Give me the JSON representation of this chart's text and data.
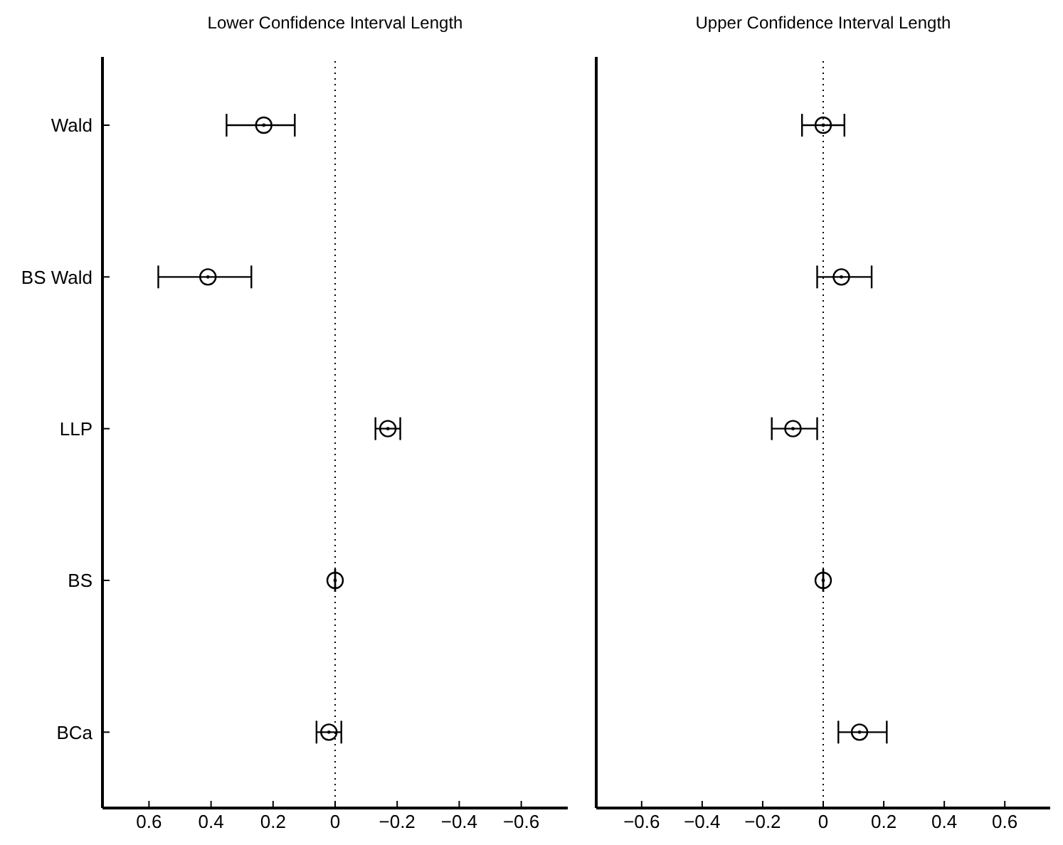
{
  "chart_data": [
    {
      "type": "scatter",
      "orientation": "horizontal",
      "title": "Lower Confidence Interval Length",
      "categories": [
        "Wald",
        "BS Wald",
        "LLP",
        "BS",
        "BCa"
      ],
      "values": [
        0.23,
        0.41,
        -0.17,
        0,
        0.02
      ],
      "errors": [
        [
          0.13,
          0.35
        ],
        [
          0.27,
          0.57
        ],
        [
          -0.21,
          -0.13
        ],
        null,
        [
          -0.02,
          0.06
        ]
      ],
      "color": "#000000",
      "marker": "circle",
      "xlim": [
        0.75,
        -0.75
      ],
      "xticks": [
        0.6,
        0.4,
        0.2,
        0,
        -0.2,
        -0.4,
        -0.6
      ],
      "ref_lines": [
        {
          "axis": "x",
          "value": 0,
          "line_style": "dotted",
          "color": "#000000"
        }
      ],
      "grid": false,
      "legend": false
    },
    {
      "type": "scatter",
      "orientation": "horizontal",
      "title": "Upper Confidence Interval Length",
      "categories": [
        null,
        null,
        null,
        null,
        null
      ],
      "values": [
        0,
        0.06,
        -0.1,
        0,
        0.12
      ],
      "errors": [
        [
          -0.07,
          0.07
        ],
        [
          -0.02,
          0.16
        ],
        [
          -0.17,
          -0.02
        ],
        null,
        [
          0.05,
          0.21
        ]
      ],
      "color": "#000000",
      "marker": "circle",
      "xlim": [
        -0.75,
        0.75
      ],
      "xticks": [
        -0.6,
        -0.4,
        -0.2,
        0,
        0.2,
        0.4,
        0.6
      ],
      "ref_lines": [
        {
          "axis": "x",
          "value": 0,
          "line_style": "dotted",
          "color": "#000000"
        }
      ],
      "grid": false,
      "legend": false,
      "tick_labels": "x"
    }
  ]
}
